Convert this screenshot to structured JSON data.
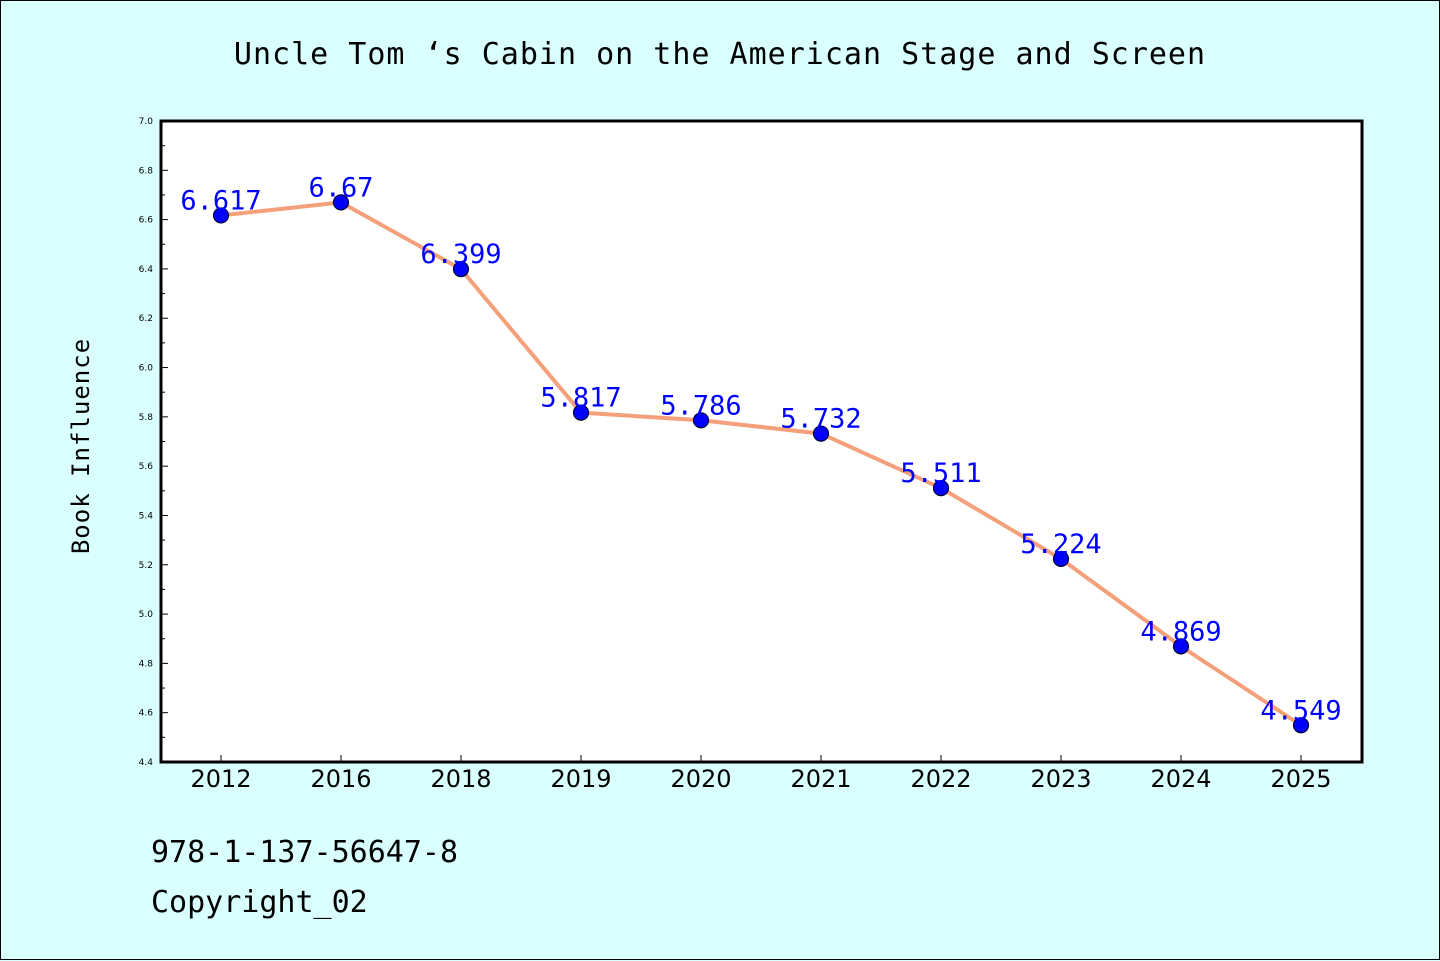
{
  "chart_data": {
    "type": "line",
    "title": "Uncle Tom ‘s Cabin on the American Stage and Screen",
    "xlabel": "",
    "ylabel": "Book Influence",
    "categories": [
      "2012",
      "2016",
      "2018",
      "2019",
      "2020",
      "2021",
      "2022",
      "2023",
      "2024",
      "2025"
    ],
    "values": [
      6.617,
      6.67,
      6.399,
      5.817,
      5.786,
      5.732,
      5.511,
      5.224,
      4.869,
      4.549
    ],
    "data_labels": [
      "6.617",
      "6.67",
      "6.399",
      "5.817",
      "5.786",
      "5.732",
      "5.511",
      "5.224",
      "4.869",
      "4.549"
    ],
    "ylim": [
      4.4,
      7.0
    ],
    "yticks": [
      "4.4",
      "4.6",
      "4.8",
      "5.0",
      "5.2",
      "5.4",
      "5.6",
      "5.8",
      "6.0",
      "6.2",
      "6.4",
      "6.6",
      "6.8",
      "7.0"
    ],
    "grid": false,
    "legend": "none",
    "colors": {
      "line": "#f4a07a",
      "marker": "#0000ff",
      "marker_edge": "#000033",
      "data_label": "#0000ff",
      "background": "#d9ffff",
      "plot_background": "#ffffff"
    }
  },
  "footer": {
    "isbn": "978-1-137-56647-8",
    "copyright": "Copyright_02"
  }
}
